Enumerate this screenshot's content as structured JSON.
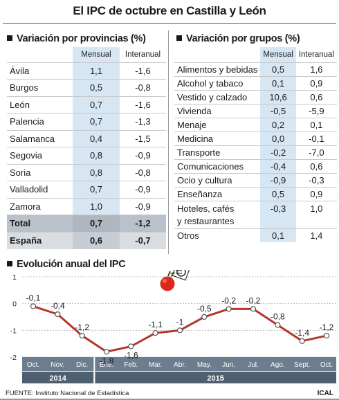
{
  "title": "El IPC de octubre en Castilla y León",
  "provincias": {
    "title": "Variación por provincias (%)",
    "col_mensual": "Mensual",
    "col_interanual": "Interanual",
    "rows": [
      {
        "name": "Ávila",
        "mensual": "1,1",
        "interanual": "-1,6"
      },
      {
        "name": "Burgos",
        "mensual": "0,5",
        "interanual": "-0,8"
      },
      {
        "name": "León",
        "mensual": "0,7",
        "interanual": "-1,6"
      },
      {
        "name": "Palencia",
        "mensual": "0,7",
        "interanual": "-1,3"
      },
      {
        "name": "Salamanca",
        "mensual": "0,4",
        "interanual": "-1,5"
      },
      {
        "name": "Segovia",
        "mensual": "0,8",
        "interanual": "-0,9"
      },
      {
        "name": "Soria",
        "mensual": "0,8",
        "interanual": "-0,8"
      },
      {
        "name": "Valladolid",
        "mensual": "0,7",
        "interanual": "-0,9"
      },
      {
        "name": "Zamora",
        "mensual": "1,0",
        "interanual": "-0,9"
      }
    ],
    "total": {
      "name": "Total",
      "mensual": "0,7",
      "interanual": "-1,2"
    },
    "espana": {
      "name": "España",
      "mensual": "0,6",
      "interanual": "-0,7"
    }
  },
  "grupos": {
    "title": "Variación por grupos (%)",
    "col_mensual": "Mensual",
    "col_interanual": "Interanual",
    "rows": [
      {
        "name": "Alimentos y bebidas",
        "mensual": "0,5",
        "interanual": "1,6"
      },
      {
        "name": "Alcohol y tabaco",
        "mensual": "0,1",
        "interanual": "0,9"
      },
      {
        "name": "Vestido y calzado",
        "mensual": "10,6",
        "interanual": "0,6"
      },
      {
        "name": "Vivienda",
        "mensual": "-0,5",
        "interanual": "-5,9"
      },
      {
        "name": "Menaje",
        "mensual": "0,2",
        "interanual": "0,1"
      },
      {
        "name": "Medicina",
        "mensual": "0,0",
        "interanual": "-0,1"
      },
      {
        "name": "Transporte",
        "mensual": "-0,2",
        "interanual": "-7,0"
      },
      {
        "name": "Comunicaciones",
        "mensual": "-0,4",
        "interanual": "0,6"
      },
      {
        "name": "Ocio y cultura",
        "mensual": "-0,9",
        "interanual": "-0,3"
      },
      {
        "name": "Enseñanza",
        "mensual": "0,5",
        "interanual": "0,9"
      },
      {
        "name": "Hoteles, cafés y restaurantes",
        "line1": "Hoteles, cafés",
        "line2": "y restaurantes",
        "mensual": "-0,3",
        "interanual": "1,0"
      },
      {
        "name": "Otros",
        "mensual": "0,1",
        "interanual": "1,4"
      }
    ]
  },
  "chart_title": "Evolución anual del IPC",
  "chart_data": {
    "type": "line",
    "title": "Evolución anual del IPC",
    "categories": [
      "Oct.",
      "Nov.",
      "Dic.",
      "Ene.",
      "Feb.",
      "Mar.",
      "Abr.",
      "May.",
      "Jun.",
      "Jul.",
      "Ago.",
      "Sept.",
      "Oct."
    ],
    "values": [
      -0.1,
      -0.4,
      -1.2,
      -1.8,
      -1.6,
      -1.1,
      -1.0,
      -0.5,
      -0.2,
      -0.2,
      -0.8,
      -1.4,
      -1.2
    ],
    "labels": [
      "-0,1",
      "-0,4",
      "-1,2",
      "-1,8",
      "-1,6",
      "-1,1",
      "-1",
      "-0,5",
      "-0,2",
      "-0,2",
      "-0,8",
      "-1,4",
      "-1,2"
    ],
    "y_ticks": [
      "1",
      "0",
      "-1",
      "-2"
    ],
    "y_tick_values": [
      1,
      0,
      -1,
      -2
    ],
    "ylim": [
      -2,
      1
    ],
    "years": [
      {
        "label": "2014",
        "from": 0,
        "to": 2
      },
      {
        "label": "2015",
        "from": 3,
        "to": 12
      }
    ],
    "grid": true,
    "colors": {
      "line": "#b5352b",
      "marker": "#ffffff",
      "marker_stroke": "#555555",
      "axis_band": "#6b7d8e",
      "years_band": "#4e5f6f",
      "grid": "#bbbbbb"
    }
  },
  "footer": {
    "source": "FUENTE: Instituto Nacional de Estadística",
    "agency": "ICAL"
  }
}
